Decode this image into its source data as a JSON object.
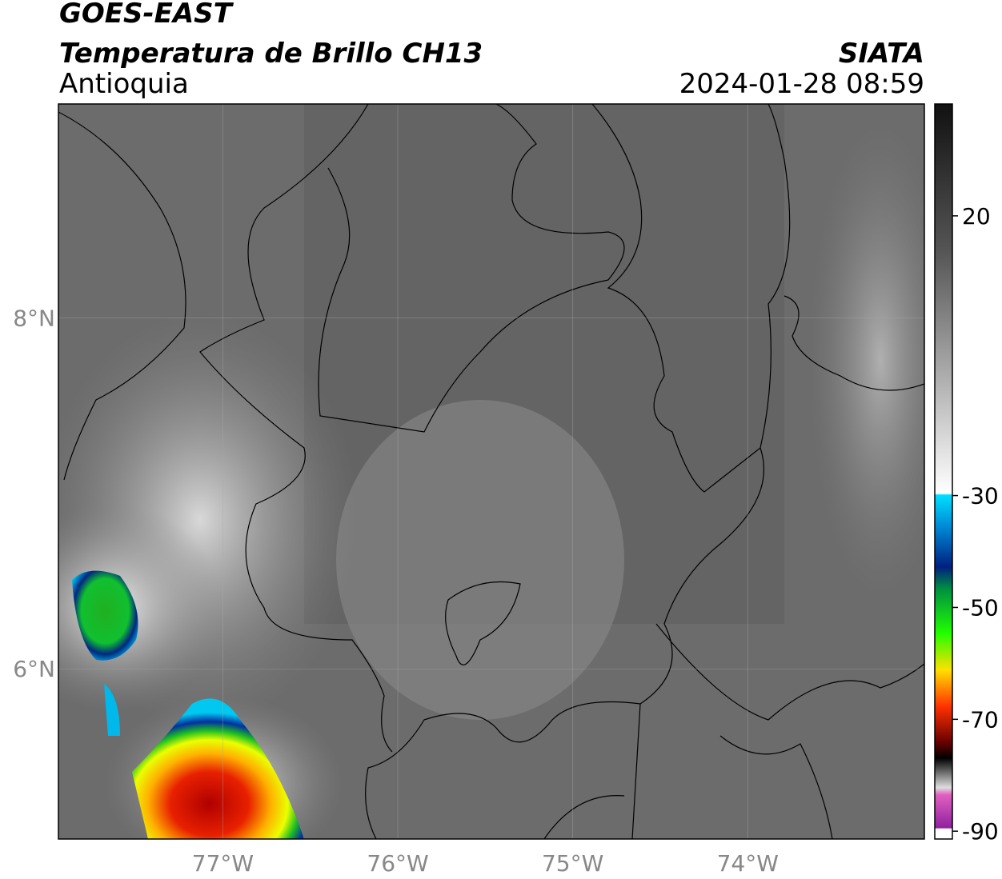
{
  "header": {
    "title": "GOES-EAST",
    "subtitle": "Temperatura de Brillo CH13",
    "region": "Antioquia",
    "source": "SIATA",
    "datetime": "2024-01-28 08:59"
  },
  "map": {
    "xlim": [
      -77.94,
      -72.99
    ],
    "ylim": [
      5.03,
      9.22
    ],
    "xticks": [
      {
        "value": -77,
        "label": "77°W"
      },
      {
        "value": -76,
        "label": "76°W"
      },
      {
        "value": -75,
        "label": "75°W"
      },
      {
        "value": -74,
        "label": "74°W"
      }
    ],
    "yticks": [
      {
        "value": 8,
        "label": "8°N"
      },
      {
        "value": 6,
        "label": "6°N"
      }
    ],
    "grid": true
  },
  "colorbar": {
    "lim": [
      -91.4,
      40
    ],
    "ticks": [
      20,
      -30,
      -50,
      -70,
      -90
    ]
  }
}
